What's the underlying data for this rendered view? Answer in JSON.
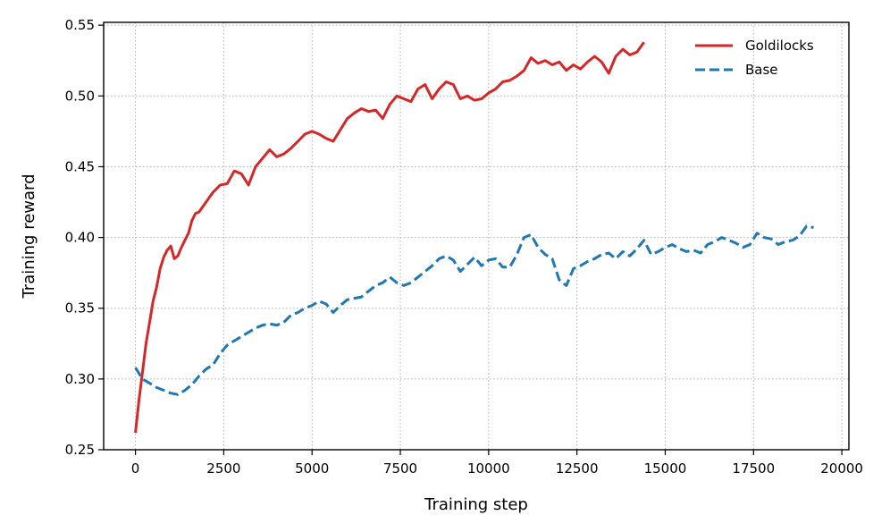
{
  "chart_data": {
    "type": "line",
    "xlabel": "Training step",
    "ylabel": "Training reward",
    "xlim": [
      -900,
      20200
    ],
    "ylim": [
      0.25,
      0.552
    ],
    "xticks": [
      0,
      2500,
      5000,
      7500,
      10000,
      12500,
      15000,
      17500,
      20000
    ],
    "xtick_labels": [
      "0",
      "2500",
      "5000",
      "7500",
      "10000",
      "12500",
      "15000",
      "17500",
      "20000"
    ],
    "yticks": [
      0.25,
      0.3,
      0.35,
      0.4,
      0.45,
      0.5,
      0.55
    ],
    "ytick_labels": [
      "0.25",
      "0.30",
      "0.35",
      "0.40",
      "0.45",
      "0.50",
      "0.55"
    ],
    "grid": true,
    "legend_position": "top-right",
    "series": [
      {
        "name": "Goldilocks",
        "color": "#d62728",
        "style": "solid",
        "x": [
          0,
          100,
          200,
          300,
          400,
          500,
          600,
          700,
          800,
          900,
          1000,
          1100,
          1200,
          1300,
          1400,
          1500,
          1600,
          1700,
          1800,
          2000,
          2200,
          2400,
          2600,
          2800,
          3000,
          3200,
          3400,
          3600,
          3800,
          4000,
          4200,
          4400,
          4600,
          4800,
          5000,
          5200,
          5400,
          5600,
          5800,
          6000,
          6200,
          6400,
          6600,
          6800,
          7000,
          7200,
          7400,
          7600,
          7800,
          8000,
          8200,
          8400,
          8600,
          8800,
          9000,
          9200,
          9400,
          9600,
          9800,
          10000,
          10200,
          10400,
          10600,
          10800,
          11000,
          11200,
          11400,
          11600,
          11800,
          12000,
          12200,
          12400,
          12600,
          12800,
          13000,
          13200,
          13400,
          13600,
          13800,
          14000,
          14200,
          14400
        ],
        "values": [
          0.262,
          0.285,
          0.305,
          0.325,
          0.34,
          0.355,
          0.365,
          0.378,
          0.386,
          0.391,
          0.394,
          0.385,
          0.387,
          0.393,
          0.398,
          0.403,
          0.412,
          0.417,
          0.418,
          0.425,
          0.432,
          0.437,
          0.438,
          0.447,
          0.445,
          0.437,
          0.45,
          0.456,
          0.462,
          0.457,
          0.459,
          0.463,
          0.468,
          0.473,
          0.475,
          0.473,
          0.47,
          0.468,
          0.476,
          0.484,
          0.488,
          0.491,
          0.489,
          0.49,
          0.484,
          0.494,
          0.5,
          0.498,
          0.496,
          0.505,
          0.508,
          0.498,
          0.505,
          0.51,
          0.508,
          0.498,
          0.5,
          0.497,
          0.498,
          0.502,
          0.505,
          0.51,
          0.511,
          0.514,
          0.518,
          0.527,
          0.523,
          0.525,
          0.522,
          0.524,
          0.518,
          0.522,
          0.519,
          0.524,
          0.528,
          0.524,
          0.516,
          0.528,
          0.533,
          0.529,
          0.531,
          0.538
        ]
      },
      {
        "name": "Base",
        "color": "#1f77b4",
        "style": "dashed",
        "x": [
          0,
          200,
          400,
          600,
          800,
          1000,
          1200,
          1400,
          1600,
          1800,
          2000,
          2200,
          2400,
          2600,
          2800,
          3000,
          3200,
          3400,
          3600,
          3800,
          4000,
          4200,
          4400,
          4600,
          4800,
          5000,
          5200,
          5400,
          5600,
          5800,
          6000,
          6200,
          6400,
          6600,
          6800,
          7000,
          7200,
          7400,
          7600,
          7800,
          8000,
          8200,
          8400,
          8600,
          8800,
          9000,
          9200,
          9400,
          9600,
          9800,
          10000,
          10200,
          10400,
          10600,
          10800,
          11000,
          11200,
          11400,
          11600,
          11800,
          12000,
          12200,
          12400,
          12600,
          12800,
          13000,
          13200,
          13400,
          13600,
          13800,
          14000,
          14200,
          14400,
          14600,
          14800,
          15000,
          15200,
          15400,
          15600,
          15800,
          16000,
          16200,
          16400,
          16600,
          16800,
          17000,
          17200,
          17400,
          17600,
          17800,
          18000,
          18200,
          18400,
          18600,
          18800,
          19000,
          19200
        ],
        "values": [
          0.308,
          0.3,
          0.297,
          0.294,
          0.292,
          0.29,
          0.289,
          0.292,
          0.296,
          0.302,
          0.307,
          0.31,
          0.318,
          0.324,
          0.327,
          0.33,
          0.333,
          0.336,
          0.338,
          0.339,
          0.338,
          0.34,
          0.345,
          0.347,
          0.35,
          0.352,
          0.355,
          0.353,
          0.347,
          0.352,
          0.356,
          0.357,
          0.358,
          0.362,
          0.366,
          0.368,
          0.372,
          0.368,
          0.366,
          0.368,
          0.372,
          0.376,
          0.38,
          0.385,
          0.387,
          0.384,
          0.376,
          0.381,
          0.386,
          0.38,
          0.384,
          0.385,
          0.379,
          0.379,
          0.388,
          0.4,
          0.402,
          0.393,
          0.388,
          0.385,
          0.37,
          0.366,
          0.378,
          0.38,
          0.383,
          0.385,
          0.388,
          0.389,
          0.385,
          0.39,
          0.387,
          0.392,
          0.398,
          0.388,
          0.39,
          0.393,
          0.395,
          0.392,
          0.39,
          0.391,
          0.389,
          0.395,
          0.397,
          0.4,
          0.398,
          0.396,
          0.393,
          0.395,
          0.403,
          0.4,
          0.399,
          0.395,
          0.397,
          0.398,
          0.401,
          0.408,
          0.407
        ]
      }
    ]
  }
}
